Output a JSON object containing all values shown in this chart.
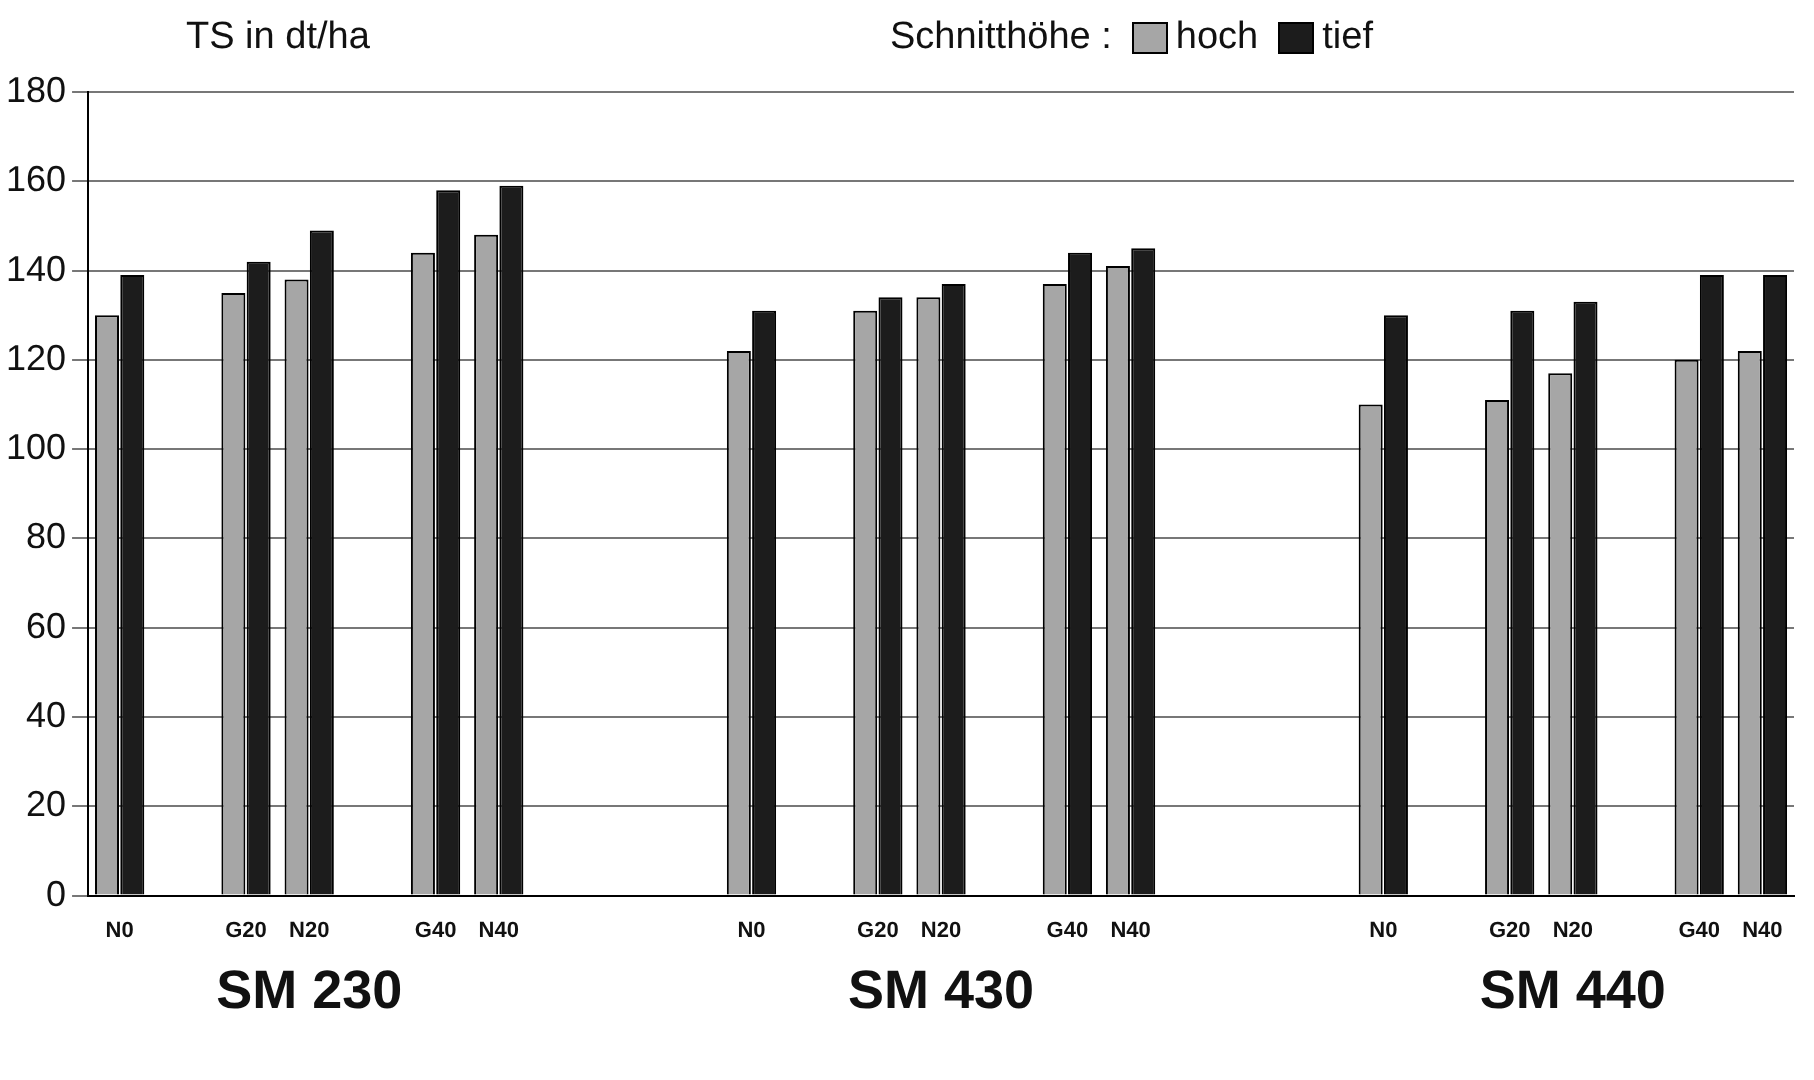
{
  "chart_data": {
    "type": "bar",
    "ylabel": "TS in dt/ha",
    "legend_title": "Schnitthöhe :",
    "categories": [
      "N0",
      null,
      "G20",
      "N20",
      null,
      "G40",
      "N40",
      null,
      null,
      null,
      "N0",
      null,
      "G20",
      "N20",
      null,
      "G40",
      "N40",
      null,
      null,
      null,
      "N0",
      null,
      "G20",
      "N20",
      null,
      "G40",
      "N40"
    ],
    "series": [
      {
        "name": "hoch",
        "color": "#a6a6a6",
        "values": [
          130,
          null,
          135,
          138,
          null,
          144,
          148,
          null,
          null,
          null,
          122,
          null,
          131,
          134,
          null,
          137,
          141,
          null,
          null,
          null,
          110,
          null,
          111,
          117,
          null,
          120,
          122
        ]
      },
      {
        "name": "tief",
        "color": "#1c1c1c",
        "values": [
          139,
          null,
          142,
          149,
          null,
          158,
          159,
          null,
          null,
          null,
          131,
          null,
          134,
          137,
          null,
          144,
          145,
          null,
          null,
          null,
          130,
          null,
          131,
          133,
          null,
          139,
          139
        ]
      }
    ],
    "annotations": [
      "SM 230",
      "SM 430",
      "SM 440"
    ],
    "ylim": [
      0,
      180
    ],
    "yticks": [
      0,
      20,
      40,
      60,
      80,
      100,
      120,
      140,
      160,
      180
    ],
    "grid": "y",
    "legend": "top"
  }
}
